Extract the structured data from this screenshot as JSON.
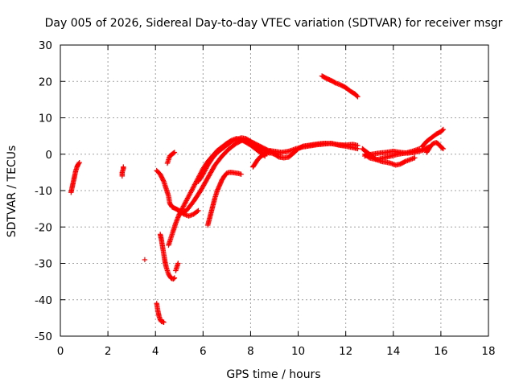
{
  "chart_data": {
    "type": "scatter",
    "title": "Day 005 of 2026, Sidereal Day-to-day VTEC variation (SDTVAR) for receiver msgr",
    "xlabel": "GPS time / hours",
    "ylabel": "SDTVAR / TECUs",
    "xlim": [
      0,
      18
    ],
    "ylim": [
      -50,
      30
    ],
    "xticks": [
      0,
      2,
      4,
      6,
      8,
      10,
      12,
      14,
      16,
      18
    ],
    "yticks": [
      -50,
      -40,
      -30,
      -20,
      -10,
      0,
      10,
      20,
      30
    ],
    "grid": true,
    "marker": "+",
    "color": "#ff0000",
    "series": [
      {
        "name": "s1",
        "x": [
          0.45,
          0.5,
          0.55,
          0.6,
          0.65,
          0.7,
          0.75,
          0.8
        ],
        "y": [
          -10.5,
          -9.0,
          -7.5,
          -6.0,
          -4.5,
          -3.5,
          -2.8,
          -2.3
        ]
      },
      {
        "name": "s2",
        "x": [
          2.6,
          2.6,
          2.65,
          2.65
        ],
        "y": [
          -6.0,
          -5.0,
          -4.0,
          -3.5
        ]
      },
      {
        "name": "s3",
        "x": [
          3.55
        ],
        "y": [
          -29.0
        ]
      },
      {
        "name": "s4",
        "x": [
          4.05,
          4.1,
          4.15,
          4.2,
          4.25,
          4.3,
          4.35
        ],
        "y": [
          -41.0,
          -43.0,
          -44.5,
          -45.5,
          -46.0,
          -46.0,
          -46.2
        ]
      },
      {
        "name": "s5",
        "x": [
          4.2,
          4.25,
          4.3,
          4.35,
          4.4,
          4.45,
          4.5,
          4.55,
          4.6,
          4.65,
          4.7,
          4.75,
          4.8
        ],
        "y": [
          -22.0,
          -23.5,
          -25.5,
          -27.5,
          -29.5,
          -31.0,
          -32.0,
          -33.0,
          -33.5,
          -34.0,
          -34.2,
          -34.3,
          -34.0
        ]
      },
      {
        "name": "s6",
        "x": [
          4.85,
          4.9,
          4.95
        ],
        "y": [
          -32.0,
          -31.0,
          -30.0
        ]
      },
      {
        "name": "s7",
        "x": [
          4.05,
          4.2,
          4.35,
          4.45,
          4.55,
          4.6,
          4.7,
          4.85,
          5.0,
          5.2,
          5.4,
          5.6,
          5.8
        ],
        "y": [
          -4.5,
          -5.5,
          -7.5,
          -9.5,
          -11.5,
          -13.5,
          -14.5,
          -15.0,
          -15.5,
          -16.5,
          -17.0,
          -16.5,
          -15.5
        ]
      },
      {
        "name": "s8",
        "x": [
          4.5,
          4.55,
          4.6,
          4.7,
          4.8
        ],
        "y": [
          -2.5,
          -1.5,
          -0.5,
          0.0,
          0.5
        ]
      },
      {
        "name": "s9",
        "x": [
          4.55,
          4.7,
          4.85,
          5.0,
          5.2,
          5.4,
          5.6,
          5.8,
          6.0,
          6.2,
          6.4,
          6.6,
          6.8,
          7.0,
          7.2,
          7.4,
          7.6,
          7.8,
          8.0,
          8.2,
          8.4,
          8.6
        ],
        "y": [
          -25.0,
          -22.0,
          -19.0,
          -16.5,
          -14.0,
          -11.5,
          -9.0,
          -6.5,
          -4.0,
          -2.0,
          -0.5,
          1.0,
          2.0,
          3.0,
          3.8,
          4.3,
          4.0,
          3.3,
          2.5,
          1.5,
          0.5,
          -0.5
        ]
      },
      {
        "name": "s10",
        "x": [
          5.0,
          5.3,
          5.6,
          5.9,
          6.2,
          6.5,
          6.8,
          7.1,
          7.4,
          7.7,
          8.0,
          8.3,
          8.6,
          8.9,
          9.2
        ],
        "y": [
          -16.5,
          -15.5,
          -13.0,
          -10.0,
          -6.5,
          -3.0,
          -0.5,
          1.5,
          3.0,
          4.0,
          3.5,
          2.5,
          1.5,
          0.5,
          0.0
        ]
      },
      {
        "name": "s11",
        "x": [
          5.8,
          6.0,
          6.2,
          6.4,
          6.6,
          6.8,
          7.0,
          7.2,
          7.4,
          7.6,
          7.8,
          8.0,
          8.2,
          8.4,
          8.6,
          8.8
        ],
        "y": [
          -7.5,
          -5.5,
          -3.0,
          -1.0,
          0.5,
          1.5,
          2.5,
          3.5,
          4.0,
          4.5,
          4.3,
          3.5,
          2.5,
          1.5,
          0.8,
          0.3
        ]
      },
      {
        "name": "s12",
        "x": [
          6.2,
          6.3,
          6.4,
          6.5,
          6.6,
          6.7,
          6.8,
          6.9,
          7.0,
          7.1,
          7.2,
          7.3,
          7.4,
          7.5,
          7.6
        ],
        "y": [
          -19.5,
          -17.0,
          -14.5,
          -12.0,
          -10.0,
          -8.5,
          -7.0,
          -6.0,
          -5.2,
          -5.0,
          -5.0,
          -5.1,
          -5.2,
          -5.3,
          -5.5
        ]
      },
      {
        "name": "s13",
        "x": [
          8.1,
          8.2,
          8.3,
          8.4,
          8.5,
          8.6,
          8.7,
          8.8,
          9.0,
          9.2,
          9.4,
          9.6,
          9.8,
          10.0,
          10.2,
          10.5,
          10.8,
          11.1,
          11.4,
          11.7,
          12.0,
          12.3,
          12.5
        ],
        "y": [
          -3.5,
          -2.5,
          -1.5,
          -0.8,
          -0.3,
          0.0,
          0.3,
          0.5,
          0.0,
          -0.8,
          -1.0,
          -0.8,
          0.3,
          1.5,
          2.2,
          2.5,
          2.8,
          3.0,
          2.9,
          2.6,
          2.5,
          2.7,
          2.4
        ]
      },
      {
        "name": "s14",
        "x": [
          8.8,
          9.0,
          9.3,
          9.6,
          9.9,
          10.2,
          10.5,
          10.8,
          11.1,
          11.4,
          11.7,
          12.0,
          12.3,
          12.5
        ],
        "y": [
          1.0,
          0.8,
          0.5,
          0.8,
          1.5,
          2.0,
          2.3,
          2.6,
          2.8,
          3.0,
          2.5,
          2.2,
          1.8,
          1.5
        ]
      },
      {
        "name": "s15",
        "x": [
          11.0,
          11.2,
          11.4,
          11.6,
          11.8,
          12.0,
          12.2,
          12.4,
          12.5
        ],
        "y": [
          21.5,
          20.8,
          20.2,
          19.5,
          19.0,
          18.3,
          17.3,
          16.5,
          15.8
        ]
      },
      {
        "name": "s16",
        "x": [
          12.7,
          12.9,
          13.1,
          13.3,
          13.5,
          13.7,
          13.9,
          14.1,
          14.3,
          14.5,
          14.7,
          14.9
        ],
        "y": [
          1.5,
          0.5,
          -0.5,
          -1.5,
          -2.0,
          -2.2,
          -2.5,
          -3.0,
          -2.7,
          -2.0,
          -1.5,
          -1.0
        ]
      },
      {
        "name": "s17",
        "x": [
          12.8,
          13.1,
          13.4,
          13.7,
          14.0,
          14.3,
          14.6,
          14.9,
          15.2,
          15.5
        ],
        "y": [
          -0.5,
          0.0,
          0.3,
          0.5,
          0.8,
          0.5,
          0.3,
          0.5,
          1.0,
          2.0
        ]
      },
      {
        "name": "s18",
        "x": [
          12.8,
          13.0,
          13.3,
          13.6,
          13.9,
          14.2,
          14.5,
          14.8,
          15.1
        ],
        "y": [
          0.0,
          -1.0,
          -1.5,
          -1.0,
          -0.5,
          0.0,
          0.3,
          0.8,
          1.5
        ]
      },
      {
        "name": "s19",
        "x": [
          15.2,
          15.4,
          15.6,
          15.8,
          16.0,
          16.1
        ],
        "y": [
          2.0,
          3.5,
          4.5,
          5.5,
          6.2,
          6.8
        ]
      },
      {
        "name": "s20",
        "x": [
          15.4,
          15.5,
          15.6,
          15.7,
          15.8,
          15.9,
          16.0,
          16.1
        ],
        "y": [
          0.5,
          1.5,
          2.5,
          3.0,
          3.2,
          2.8,
          2.0,
          1.5
        ]
      }
    ]
  }
}
